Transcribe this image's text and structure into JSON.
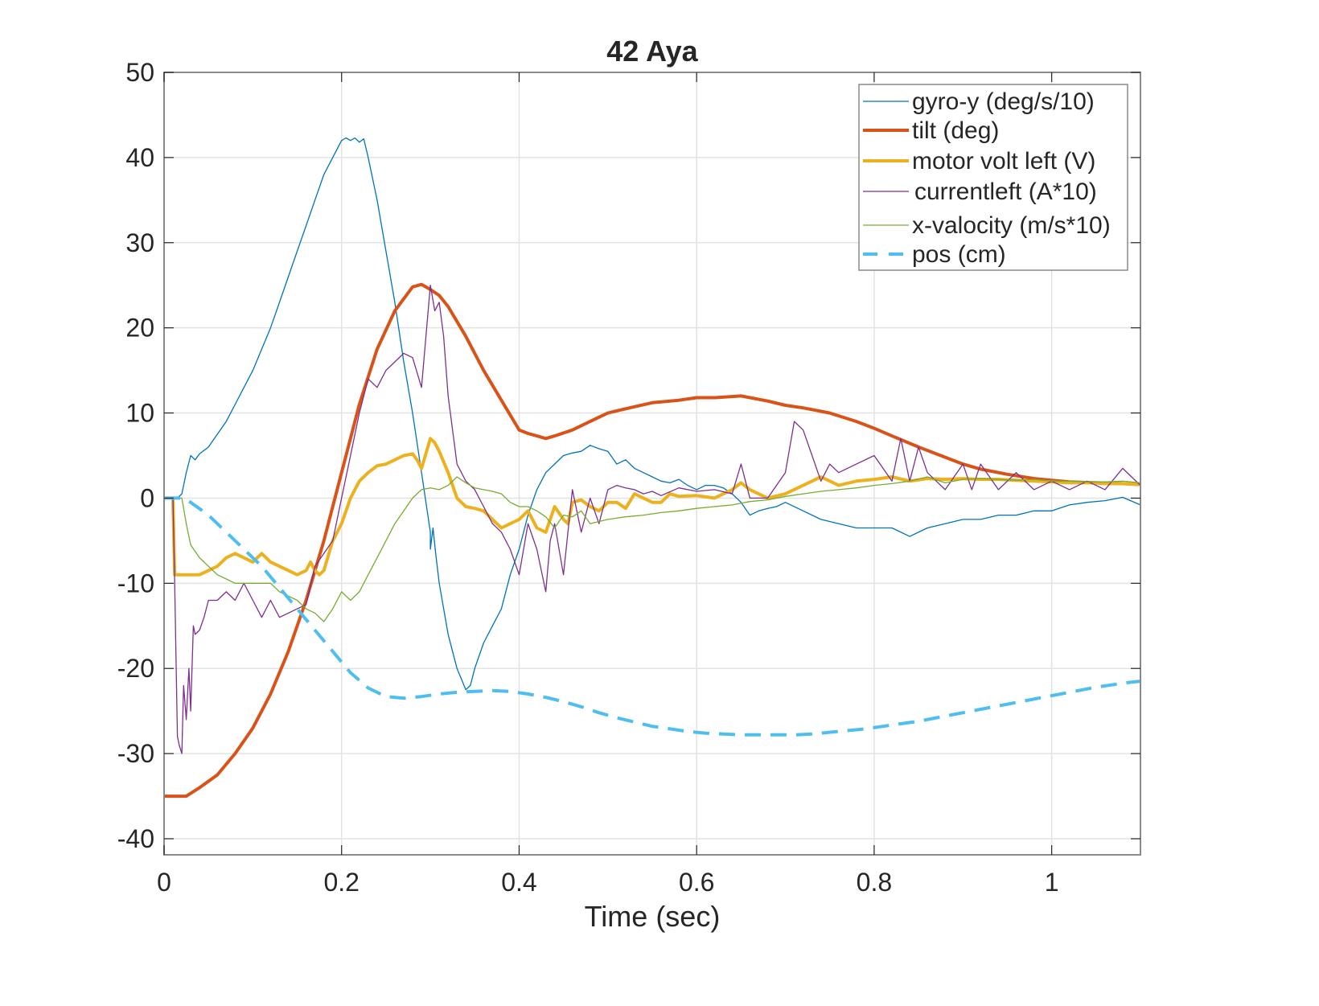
{
  "chart_data": {
    "type": "line",
    "title": "42 Aya",
    "xlabel": "Time (sec)",
    "ylabel": "",
    "xlim": [
      0,
      1.1
    ],
    "ylim": [
      -42,
      50
    ],
    "xticks": [
      0,
      0.2,
      0.4,
      0.6,
      0.8,
      1
    ],
    "xtick_labels": [
      "0",
      "0.2",
      "0.4",
      "0.6",
      "0.8",
      "1"
    ],
    "yticks": [
      -40,
      -30,
      -20,
      -10,
      0,
      10,
      20,
      30,
      40,
      50
    ],
    "ytick_labels": [
      "-40",
      "-30",
      "-20",
      "-10",
      "0",
      "10",
      "20",
      "30",
      "40",
      "50"
    ],
    "grid": true,
    "legend_position": "top-right",
    "series": [
      {
        "name": "gyro-y (deg/s/10)",
        "color": "#0072BD",
        "width": "thin",
        "style": "solid",
        "x": [
          0,
          0.015,
          0.02,
          0.025,
          0.03,
          0.035,
          0.04,
          0.05,
          0.06,
          0.07,
          0.08,
          0.09,
          0.1,
          0.11,
          0.12,
          0.13,
          0.14,
          0.15,
          0.16,
          0.17,
          0.18,
          0.19,
          0.2,
          0.205,
          0.21,
          0.215,
          0.22,
          0.225,
          0.23,
          0.24,
          0.25,
          0.26,
          0.27,
          0.28,
          0.29,
          0.3,
          0.3,
          0.303,
          0.306,
          0.31,
          0.32,
          0.33,
          0.34,
          0.345,
          0.35,
          0.36,
          0.37,
          0.38,
          0.39,
          0.4,
          0.41,
          0.42,
          0.43,
          0.44,
          0.45,
          0.46,
          0.47,
          0.48,
          0.49,
          0.5,
          0.51,
          0.52,
          0.53,
          0.54,
          0.55,
          0.56,
          0.57,
          0.58,
          0.59,
          0.6,
          0.61,
          0.62,
          0.63,
          0.64,
          0.65,
          0.66,
          0.67,
          0.68,
          0.69,
          0.7,
          0.72,
          0.74,
          0.76,
          0.78,
          0.8,
          0.82,
          0.84,
          0.86,
          0.88,
          0.9,
          0.92,
          0.94,
          0.96,
          0.98,
          1.0,
          1.02,
          1.04,
          1.06,
          1.08,
          1.1
        ],
        "y": [
          0,
          0,
          0.5,
          3,
          5,
          4.5,
          5.2,
          6,
          7.5,
          9,
          11,
          13,
          15,
          17.5,
          20,
          23,
          26,
          29,
          32,
          35,
          38,
          40,
          42,
          42.3,
          42,
          42.3,
          41.8,
          42.2,
          40,
          35,
          29,
          23,
          16,
          10,
          3,
          -4,
          -6,
          -3.5,
          -6.5,
          -10,
          -16,
          -20,
          -22.5,
          -22,
          -20,
          -17,
          -15,
          -13,
          -9,
          -6,
          -2,
          1,
          3,
          4,
          5,
          5.3,
          5.5,
          6.2,
          5.8,
          5.5,
          4,
          4.5,
          3.5,
          3,
          2.5,
          2,
          1.8,
          2.2,
          1.5,
          1,
          1.5,
          1.5,
          1.2,
          0.5,
          -0.5,
          -2,
          -1.5,
          -1.2,
          -1,
          -0.5,
          -1.5,
          -2.5,
          -3,
          -3.5,
          -3.5,
          -3.5,
          -4.5,
          -3.5,
          -3,
          -2.5,
          -2.5,
          -2,
          -2,
          -1.5,
          -1.5,
          -0.8,
          -0.5,
          -0.3,
          0.1,
          -0.8
        ]
      },
      {
        "name": "tilt (deg)",
        "color": "#D95319",
        "width": "thick",
        "style": "solid",
        "x": [
          0,
          0.025,
          0.04,
          0.06,
          0.08,
          0.1,
          0.12,
          0.14,
          0.16,
          0.18,
          0.2,
          0.22,
          0.24,
          0.26,
          0.28,
          0.29,
          0.3,
          0.31,
          0.32,
          0.34,
          0.36,
          0.38,
          0.4,
          0.41,
          0.42,
          0.43,
          0.44,
          0.46,
          0.48,
          0.5,
          0.52,
          0.55,
          0.58,
          0.6,
          0.62,
          0.65,
          0.68,
          0.7,
          0.72,
          0.75,
          0.78,
          0.8,
          0.82,
          0.85,
          0.88,
          0.9,
          0.92,
          0.95,
          0.98,
          1.0,
          1.02,
          1.05,
          1.08,
          1.1
        ],
        "y": [
          -35,
          -35,
          -34,
          -32.5,
          -30,
          -27,
          -23,
          -18,
          -12,
          -5,
          3,
          11,
          17.5,
          22,
          24.8,
          25.1,
          24.5,
          23.8,
          22.5,
          19,
          15,
          11.5,
          8,
          7.6,
          7.3,
          7,
          7.3,
          8,
          9,
          10,
          10.5,
          11.2,
          11.5,
          11.8,
          11.8,
          12,
          11.4,
          10.9,
          10.6,
          10,
          9,
          8.2,
          7.3,
          6,
          4.8,
          4,
          3.4,
          2.8,
          2.3,
          2.1,
          1.9,
          1.8,
          1.7,
          1.6
        ]
      },
      {
        "name": "motor volt left (V)",
        "color": "#EDB120",
        "width": "thick",
        "style": "solid",
        "x": [
          0,
          0.01,
          0.012,
          0.04,
          0.05,
          0.06,
          0.07,
          0.08,
          0.09,
          0.1,
          0.11,
          0.12,
          0.13,
          0.14,
          0.15,
          0.16,
          0.165,
          0.17,
          0.175,
          0.18,
          0.19,
          0.2,
          0.21,
          0.22,
          0.23,
          0.24,
          0.25,
          0.26,
          0.27,
          0.28,
          0.285,
          0.29,
          0.3,
          0.305,
          0.31,
          0.32,
          0.33,
          0.34,
          0.35,
          0.36,
          0.37,
          0.38,
          0.39,
          0.4,
          0.41,
          0.42,
          0.43,
          0.44,
          0.45,
          0.455,
          0.46,
          0.47,
          0.48,
          0.49,
          0.5,
          0.51,
          0.52,
          0.53,
          0.54,
          0.55,
          0.56,
          0.57,
          0.58,
          0.6,
          0.62,
          0.64,
          0.65,
          0.66,
          0.68,
          0.7,
          0.72,
          0.74,
          0.76,
          0.78,
          0.8,
          0.82,
          0.84,
          0.86,
          0.88,
          0.9,
          0.92,
          0.94,
          0.96,
          0.98,
          1.0,
          1.02,
          1.04,
          1.06,
          1.08,
          1.1
        ],
        "y": [
          0,
          0,
          -9,
          -9,
          -8.5,
          -8,
          -7,
          -6.5,
          -7,
          -7.5,
          -6.5,
          -7.5,
          -8,
          -8.5,
          -9,
          -8.5,
          -7.5,
          -8.5,
          -9,
          -8.5,
          -5,
          -3,
          0,
          2,
          3,
          3.8,
          4,
          4.5,
          5,
          5.2,
          4.5,
          3.5,
          7,
          6.5,
          5.5,
          3,
          0,
          -1,
          -1.2,
          -1.5,
          -2.5,
          -3.5,
          -3,
          -2.5,
          -1.5,
          -3.5,
          -4,
          -1,
          -2.5,
          -3,
          -0.5,
          -0.2,
          -1,
          -1.5,
          -0.5,
          -0.5,
          -1.2,
          0.5,
          0,
          -0.5,
          -0.5,
          0.5,
          0.2,
          0.3,
          0,
          1,
          1.8,
          1,
          0,
          0.5,
          1.5,
          2.5,
          1.5,
          2,
          2.2,
          2.5,
          2,
          2.3,
          2.2,
          2.3,
          2.2,
          2.2,
          2.1,
          2,
          1.9,
          1.8,
          1.8,
          1.7,
          1.7,
          1.6
        ]
      },
      {
        "name": "currentleft  (A*10)",
        "color": "#7E2F8E",
        "width": "thin",
        "style": "solid",
        "x": [
          0,
          0.01,
          0.012,
          0.015,
          0.017,
          0.02,
          0.022,
          0.025,
          0.028,
          0.03,
          0.033,
          0.035,
          0.04,
          0.045,
          0.05,
          0.06,
          0.07,
          0.08,
          0.09,
          0.1,
          0.11,
          0.12,
          0.13,
          0.14,
          0.15,
          0.16,
          0.17,
          0.19,
          0.2,
          0.21,
          0.22,
          0.23,
          0.24,
          0.25,
          0.26,
          0.27,
          0.28,
          0.29,
          0.295,
          0.3,
          0.305,
          0.31,
          0.315,
          0.32,
          0.33,
          0.34,
          0.35,
          0.36,
          0.37,
          0.38,
          0.39,
          0.4,
          0.41,
          0.42,
          0.43,
          0.435,
          0.44,
          0.45,
          0.46,
          0.47,
          0.48,
          0.49,
          0.5,
          0.51,
          0.52,
          0.53,
          0.54,
          0.55,
          0.56,
          0.58,
          0.6,
          0.62,
          0.64,
          0.65,
          0.66,
          0.68,
          0.7,
          0.71,
          0.72,
          0.73,
          0.74,
          0.75,
          0.76,
          0.78,
          0.8,
          0.82,
          0.83,
          0.84,
          0.85,
          0.86,
          0.88,
          0.9,
          0.91,
          0.92,
          0.94,
          0.96,
          0.98,
          1.0,
          1.02,
          1.04,
          1.06,
          1.08,
          1.1
        ],
        "y": [
          0,
          0,
          -10,
          -28,
          -29,
          -30,
          -22,
          -26,
          -20,
          -25,
          -15,
          -16,
          -15.5,
          -14,
          -12,
          -12,
          -11,
          -12,
          -10,
          -12,
          -14,
          -12,
          -14,
          -13.5,
          -13,
          -12.5,
          -8,
          -5,
          0,
          5,
          10,
          14,
          13,
          15,
          16,
          17,
          16.5,
          13,
          19,
          25,
          22,
          23,
          19,
          12,
          4,
          2,
          1,
          -1,
          -3,
          -4,
          -6,
          -9,
          -3,
          -6,
          -11,
          -5,
          -3,
          -9,
          1,
          -4,
          0,
          -3,
          1,
          1.5,
          1.2,
          1,
          0.5,
          0.8,
          0.3,
          1.2,
          0.8,
          1,
          0.5,
          4,
          0,
          0,
          3,
          9,
          8,
          5,
          2,
          4,
          3,
          4,
          5,
          2,
          7,
          2,
          6,
          3,
          1,
          4,
          1,
          4,
          1,
          3,
          1,
          2,
          1,
          2,
          1,
          3.5,
          1.5
        ]
      },
      {
        "name": "x-valocity (m/s*10)",
        "color": "#77AC30",
        "width": "thin",
        "style": "solid",
        "x": [
          0,
          0.02,
          0.025,
          0.03,
          0.04,
          0.05,
          0.06,
          0.07,
          0.08,
          0.09,
          0.1,
          0.11,
          0.12,
          0.13,
          0.14,
          0.15,
          0.16,
          0.17,
          0.18,
          0.19,
          0.2,
          0.21,
          0.22,
          0.23,
          0.24,
          0.25,
          0.26,
          0.27,
          0.28,
          0.29,
          0.3,
          0.31,
          0.32,
          0.33,
          0.34,
          0.35,
          0.36,
          0.37,
          0.38,
          0.39,
          0.4,
          0.41,
          0.42,
          0.43,
          0.44,
          0.45,
          0.46,
          0.47,
          0.48,
          0.5,
          0.52,
          0.54,
          0.56,
          0.58,
          0.6,
          0.62,
          0.64,
          0.66,
          0.68,
          0.7,
          0.72,
          0.74,
          0.76,
          0.78,
          0.8,
          0.82,
          0.84,
          0.86,
          0.88,
          0.9,
          0.92,
          0.94,
          0.96,
          0.98,
          1.0,
          1.02,
          1.04,
          1.06,
          1.08,
          1.1
        ],
        "y": [
          0,
          0,
          -3,
          -5.5,
          -7,
          -8,
          -9,
          -9.5,
          -10,
          -10,
          -10,
          -10,
          -10,
          -11,
          -11.5,
          -12,
          -13,
          -13.5,
          -14.5,
          -13,
          -11,
          -12,
          -11,
          -9,
          -7,
          -5,
          -3,
          -1.5,
          0,
          1,
          1.2,
          1,
          1.5,
          2.5,
          1.8,
          1.2,
          1,
          0.8,
          0.5,
          -0.5,
          -1,
          -1,
          -1.5,
          -2.2,
          -3.5,
          -2,
          -2.2,
          -1.5,
          -3,
          -2.5,
          -2.2,
          -2,
          -1.7,
          -1.5,
          -1.2,
          -1,
          -0.8,
          -0.4,
          -0.2,
          0.2,
          0.5,
          0.8,
          1,
          1.2,
          1.5,
          1.7,
          2,
          2.5,
          1.8,
          2.2,
          2.3,
          2.2,
          2.1,
          2.2,
          2,
          2,
          1.9,
          1.9,
          2,
          1.8
        ]
      },
      {
        "name": "pos (cm)",
        "color": "#4DBEEE",
        "width": "thick",
        "style": "dashed",
        "x": [
          0,
          0.02,
          0.03,
          0.05,
          0.07,
          0.09,
          0.11,
          0.13,
          0.15,
          0.17,
          0.19,
          0.21,
          0.23,
          0.25,
          0.27,
          0.29,
          0.31,
          0.33,
          0.35,
          0.37,
          0.39,
          0.41,
          0.43,
          0.45,
          0.47,
          0.49,
          0.51,
          0.53,
          0.55,
          0.57,
          0.59,
          0.61,
          0.63,
          0.65,
          0.67,
          0.69,
          0.71,
          0.73,
          0.75,
          0.77,
          0.79,
          0.81,
          0.83,
          0.85,
          0.87,
          0.89,
          0.91,
          0.93,
          0.95,
          0.97,
          0.99,
          1.01,
          1.03,
          1.05,
          1.07,
          1.09,
          1.1
        ],
        "y": [
          0,
          0,
          -0.5,
          -2,
          -4,
          -6,
          -8,
          -10.5,
          -13,
          -15.5,
          -18,
          -20.5,
          -22.3,
          -23.3,
          -23.5,
          -23.3,
          -23,
          -22.8,
          -22.7,
          -22.6,
          -22.7,
          -23,
          -23.4,
          -23.9,
          -24.5,
          -25.2,
          -25.8,
          -26.3,
          -26.8,
          -27.1,
          -27.4,
          -27.6,
          -27.7,
          -27.8,
          -27.8,
          -27.8,
          -27.8,
          -27.7,
          -27.5,
          -27.3,
          -27.1,
          -26.8,
          -26.5,
          -26.2,
          -25.8,
          -25.4,
          -25,
          -24.6,
          -24.2,
          -23.8,
          -23.4,
          -23,
          -22.6,
          -22.2,
          -21.9,
          -21.6,
          -21.5
        ]
      }
    ]
  }
}
